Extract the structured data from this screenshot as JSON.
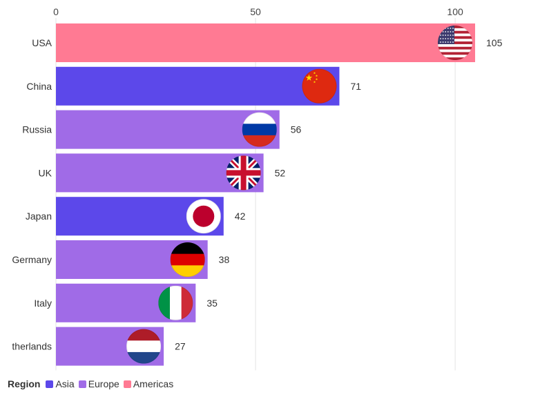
{
  "chart_data": {
    "type": "bar",
    "orientation": "horizontal",
    "categories": [
      "USA",
      "China",
      "Russia",
      "UK",
      "Japan",
      "Germany",
      "Italy",
      "therlands"
    ],
    "values": [
      105,
      71,
      56,
      52,
      42,
      38,
      35,
      27
    ],
    "regions": [
      "Americas",
      "Asia",
      "Europe",
      "Europe",
      "Asia",
      "Europe",
      "Europe",
      "Europe"
    ],
    "flags": [
      "usa-flag-icon",
      "china-flag-icon",
      "russia-flag-icon",
      "uk-flag-icon",
      "japan-flag-icon",
      "germany-flag-icon",
      "italy-flag-icon",
      "netherlands-flag-icon"
    ],
    "x_ticks": [
      0,
      50,
      100
    ],
    "xlim": [
      0,
      105
    ],
    "grid": "vertical",
    "legend": {
      "title": "Region",
      "placement": "bottom-left",
      "items": [
        {
          "name": "Asia",
          "color": "#5c48ea"
        },
        {
          "name": "Europe",
          "color": "#a06be7"
        },
        {
          "name": "Americas",
          "color": "#ff7a93"
        }
      ]
    }
  }
}
